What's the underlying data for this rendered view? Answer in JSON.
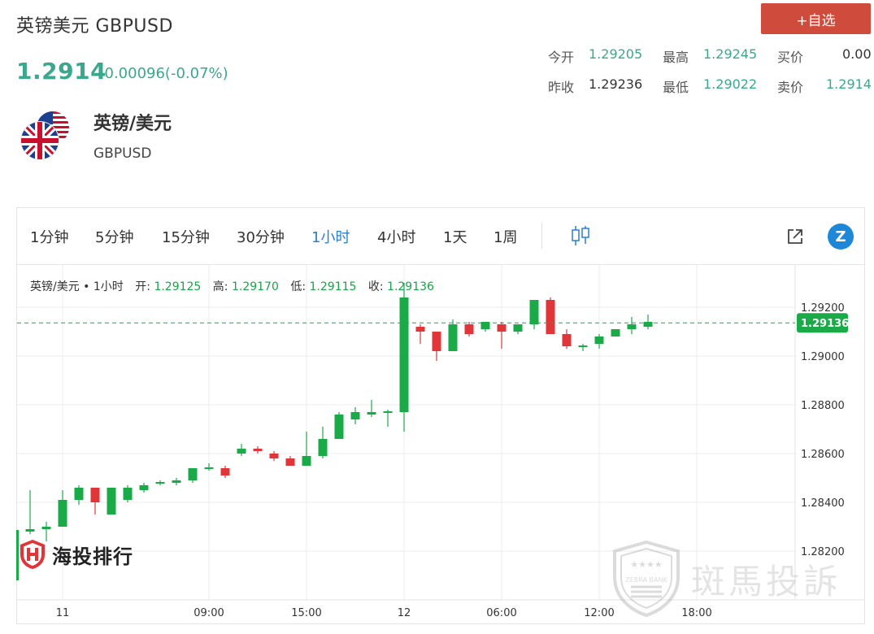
{
  "header": {
    "title": "英镑美元 GBPUSD",
    "add_button": "+自选",
    "price": "1.2914",
    "change": "-0.00096(-0.07%)"
  },
  "stats": {
    "open_label": "今开",
    "open_value": "1.29205",
    "high_label": "最高",
    "high_value": "1.29245",
    "bid_label": "买价",
    "bid_value": "0.00",
    "prev_label": "昨收",
    "prev_value": "1.29236",
    "low_label": "最低",
    "low_value": "1.29022",
    "ask_label": "卖价",
    "ask_value": "1.2914"
  },
  "pair": {
    "name": "英镑/美元",
    "code": "GBPUSD"
  },
  "tabs": [
    "1分钟",
    "5分钟",
    "15分钟",
    "30分钟",
    "1小时",
    "4小时",
    "1天",
    "1周"
  ],
  "active_tab": "1小时",
  "icons": {
    "candle": "candlestick-toggle-icon",
    "share": "external-link-icon",
    "z": "z-logo-icon",
    "flag": "gb-us-flag-icon"
  },
  "info": {
    "symbol": "英镑/美元",
    "period": "1小时",
    "open_label": "开:",
    "open": "1.29125",
    "high_label": "高:",
    "high": "1.29170",
    "low_label": "低:",
    "low": "1.29115",
    "close_label": "收:",
    "close": "1.29136"
  },
  "logos": {
    "brand_left": "海投排行",
    "brand_right": "斑馬投訴",
    "brand_right_small": "ZEBRA BANK"
  },
  "colors": {
    "up": "#1aaa48",
    "down": "#e0363a",
    "accent": "#3aa88d",
    "active_tab": "#2b7fd0",
    "button": "#cf4b3c"
  },
  "chart_data": {
    "type": "candlestick",
    "y_ticks": [
      "1.29200",
      "1.29000",
      "1.28800",
      "1.28600",
      "1.28400",
      "1.28200"
    ],
    "ylim": [
      1.2806,
      1.2932
    ],
    "x_ticks": [
      "11",
      "09:00",
      "15:00",
      "12",
      "06:00",
      "12:00",
      "18:00"
    ],
    "current_price_label": "1.29136",
    "current_price": 1.29136,
    "candles": [
      [
        1.2828,
        1.2829,
        1.2827,
        1.2845
      ],
      [
        1.2829,
        1.283,
        1.2824,
        1.2832
      ],
      [
        1.283,
        1.2841,
        1.283,
        1.2845
      ],
      [
        1.2841,
        1.2846,
        1.2839,
        1.2847
      ],
      [
        1.2846,
        1.284,
        1.2835,
        1.2846
      ],
      [
        1.2835,
        1.2846,
        1.2835,
        1.2846
      ],
      [
        1.2841,
        1.2846,
        1.284,
        1.2847
      ],
      [
        1.2845,
        1.2847,
        1.2844,
        1.2848
      ],
      [
        1.2848,
        1.2848,
        1.2847,
        1.2849
      ],
      [
        1.2848,
        1.2849,
        1.2847,
        1.285
      ],
      [
        1.2849,
        1.2854,
        1.2848,
        1.2854
      ],
      [
        1.2854,
        1.2854,
        1.2853,
        1.2856
      ],
      [
        1.2854,
        1.2851,
        1.285,
        1.2855
      ],
      [
        1.286,
        1.2862,
        1.2859,
        1.2864
      ],
      [
        1.2862,
        1.2861,
        1.286,
        1.2863
      ],
      [
        1.286,
        1.2858,
        1.2857,
        1.2861
      ],
      [
        1.2858,
        1.2855,
        1.2855,
        1.2859
      ],
      [
        1.2855,
        1.2859,
        1.2855,
        1.2869
      ],
      [
        1.2859,
        1.2866,
        1.2858,
        1.2871
      ],
      [
        1.2866,
        1.2876,
        1.2866,
        1.2877
      ],
      [
        1.2874,
        1.2877,
        1.2872,
        1.2879
      ],
      [
        1.2876,
        1.2877,
        1.2875,
        1.2882
      ],
      [
        1.2877,
        1.2877,
        1.2871,
        1.2878
      ],
      [
        1.2877,
        1.2924,
        1.2869,
        1.293
      ],
      [
        1.2912,
        1.291,
        1.2905,
        1.2913
      ],
      [
        1.291,
        1.2902,
        1.2898,
        1.291
      ],
      [
        1.2902,
        1.2913,
        1.2902,
        1.2915
      ],
      [
        1.2913,
        1.2909,
        1.2908,
        1.2914
      ],
      [
        1.2911,
        1.2914,
        1.291,
        1.2914
      ],
      [
        1.2913,
        1.291,
        1.2903,
        1.2914
      ],
      [
        1.291,
        1.2913,
        1.2909,
        1.2913
      ],
      [
        1.2913,
        1.2923,
        1.2911,
        1.2923
      ],
      [
        1.2923,
        1.2909,
        1.2909,
        1.2924
      ],
      [
        1.2909,
        1.2904,
        1.2903,
        1.2911
      ],
      [
        1.2904,
        1.2904,
        1.2902,
        1.2905
      ],
      [
        1.2905,
        1.2908,
        1.2903,
        1.2909
      ],
      [
        1.2908,
        1.2911,
        1.2908,
        1.2911
      ],
      [
        1.2911,
        1.2913,
        1.2909,
        1.2916
      ],
      [
        1.2912,
        1.2914,
        1.2911,
        1.2917
      ]
    ]
  }
}
